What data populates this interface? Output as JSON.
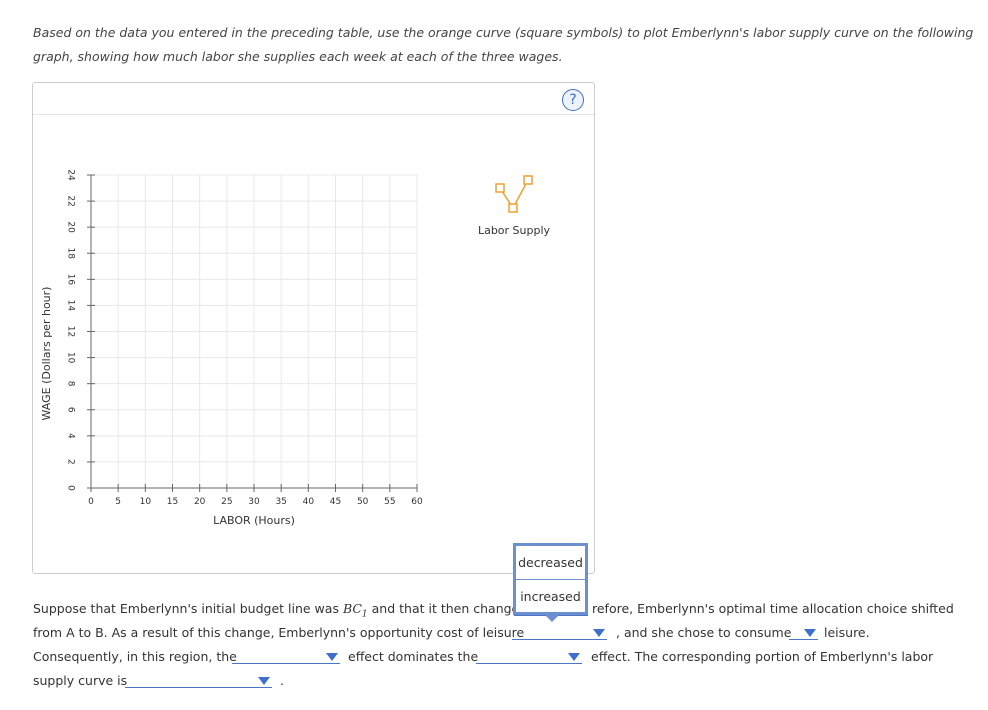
{
  "instructions": [
    "Based on the data you entered in the preceding table, use the orange curve (square symbols) to plot Emberlynn's labor supply curve on the following",
    "graph, showing how much labor she supplies each week at each of the three wages."
  ],
  "help": "?",
  "chart_data": {
    "type": "line",
    "xlabel": "LABOR (Hours)",
    "ylabel": "WAGE (Dollars per hour)",
    "x": [],
    "series": [
      {
        "name": "Labor Supply",
        "color": "#f0a030",
        "values": []
      }
    ],
    "xlim": [
      0,
      60
    ],
    "xticks": [
      0,
      5,
      10,
      15,
      20,
      25,
      30,
      35,
      40,
      45,
      50,
      55,
      60
    ],
    "ylim": [
      0,
      24
    ],
    "yticks": [
      0,
      2,
      4,
      6,
      8,
      10,
      12,
      14,
      16,
      18,
      20,
      22,
      24
    ],
    "grid": true
  },
  "dropdown_options": [
    "decreased",
    "increased"
  ],
  "question": {
    "lines": [
      [
        "Suppose that Emberlynn's initial budget line was",
        "BC",
        "1",
        "and that it then changed",
        "refore, Emberlynn's optimal time allocation choice shifted"
      ],
      [
        "from A to B. As a result of this change, Emberlynn's opportunity cost of leisure",
        ", and she chose to consume",
        "leisure."
      ],
      [
        "Consequently, in this region, the",
        "effect dominates the",
        "effect. The corresponding portion of Emberlynn's labor"
      ],
      [
        "supply curve is",
        "."
      ]
    ]
  }
}
